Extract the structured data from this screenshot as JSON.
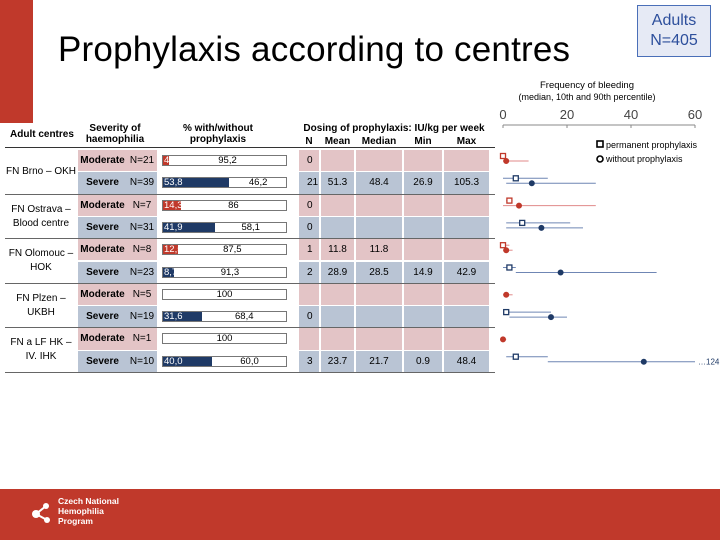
{
  "title": "Prophylaxis according to centres",
  "adults_box": {
    "line1": "Adults",
    "line2": "N=405"
  },
  "headers": {
    "centres": "Adult centres",
    "severity": [
      "Severity of",
      "haemophilia"
    ],
    "pct": [
      "% with/without",
      "prophylaxis"
    ],
    "dosing": "Dosing of prophylaxis: IU/kg per week",
    "dose_cols": [
      "N",
      "Mean",
      "Median",
      "Min",
      "Max"
    ]
  },
  "centres": [
    {
      "name": [
        "FN Brno – OKH"
      ]
    },
    {
      "name": [
        "FN Ostrava –",
        "Blood centre"
      ]
    },
    {
      "name": [
        "FN Olomouc –",
        "HOK"
      ]
    },
    {
      "name": [
        "FN Plzen –",
        "UKBH"
      ]
    },
    {
      "name": [
        "FN a LF HK –",
        "IV. IHK"
      ]
    }
  ],
  "rows": [
    {
      "severity": "Moderate",
      "n": "N=21",
      "with": "4,8",
      "without": "95,2",
      "dose": [
        "0",
        "",
        "",
        "",
        ""
      ]
    },
    {
      "severity": "Severe",
      "n": "N=39",
      "with": "53,8",
      "without": "46,2",
      "dose": [
        "21",
        "51.3",
        "48.4",
        "26.9",
        "105.3"
      ]
    },
    {
      "severity": "Moderate",
      "n": "N=7",
      "with": "14,3",
      "without": "86",
      "dose": [
        "0",
        "",
        "",
        "",
        ""
      ]
    },
    {
      "severity": "Severe",
      "n": "N=31",
      "with": "41,9",
      "without": "58,1",
      "dose": [
        "0",
        "",
        "",
        "",
        ""
      ]
    },
    {
      "severity": "Moderate",
      "n": "N=8",
      "with": "12,5",
      "without": "87,5",
      "dose": [
        "1",
        "11.8",
        "11.8",
        "",
        ""
      ]
    },
    {
      "severity": "Severe",
      "n": "N=23",
      "with": "8,7",
      "without": "91,3",
      "dose": [
        "2",
        "28.9",
        "28.5",
        "14.9",
        "42.9"
      ]
    },
    {
      "severity": "Moderate",
      "n": "N=5",
      "with": "",
      "without": "100",
      "dose": [
        "",
        "",
        "",
        "",
        ""
      ]
    },
    {
      "severity": "Severe",
      "n": "N=19",
      "with": "31,6",
      "without": "68,4",
      "dose": [
        "0",
        "",
        "",
        "",
        ""
      ]
    },
    {
      "severity": "Moderate",
      "n": "N=1",
      "with": "",
      "without": "100",
      "dose": [
        "",
        "",
        "",
        "",
        ""
      ]
    },
    {
      "severity": "Severe",
      "n": "N=10",
      "with": "40,0",
      "without": "60,0",
      "dose": [
        "3",
        "23.7",
        "21.7",
        "0.9",
        "48.4"
      ]
    }
  ],
  "colors": {
    "moderate_bg": "#e3c4c6",
    "severe_bg": "#b9c4d4",
    "moderate_fill": "#c0392b",
    "severe_fill": "#1f3a66",
    "accent": "#c0392b"
  },
  "chart_data": {
    "type": "scatter",
    "title": "Frequency of bleeding",
    "subtitle": "(median, 10th and 90th percentile)",
    "xlim": [
      0,
      60
    ],
    "xticks": [
      "0",
      "20",
      "40",
      "60"
    ],
    "legend": [
      "permanent prophylaxis",
      "without prophylaxis"
    ],
    "legend_position": "top-right",
    "overflow_label": "…124",
    "rows": [
      {
        "perm": [
          0,
          0,
          1
        ],
        "without": [
          1,
          0,
          8
        ]
      },
      {
        "perm": [
          4,
          0,
          14
        ],
        "without": [
          9,
          1,
          29
        ]
      },
      {
        "perm": [
          2,
          1,
          3
        ],
        "without": [
          5,
          0,
          29
        ]
      },
      {
        "perm": [
          6,
          1,
          21
        ],
        "without": [
          12,
          1,
          25
        ]
      },
      {
        "perm": [
          0,
          0,
          2
        ],
        "without": [
          1,
          0,
          3
        ]
      },
      {
        "perm": [
          2,
          0,
          4
        ],
        "without": [
          18,
          4,
          48
        ]
      },
      {
        "perm": null,
        "without": [
          1,
          0,
          3
        ]
      },
      {
        "perm": [
          1,
          0,
          15
        ],
        "without": [
          15,
          2,
          20
        ]
      },
      {
        "perm": null,
        "without": [
          0,
          0,
          1
        ]
      },
      {
        "perm": [
          4,
          1,
          14
        ],
        "without": [
          44,
          14,
          60
        ]
      }
    ]
  }
}
